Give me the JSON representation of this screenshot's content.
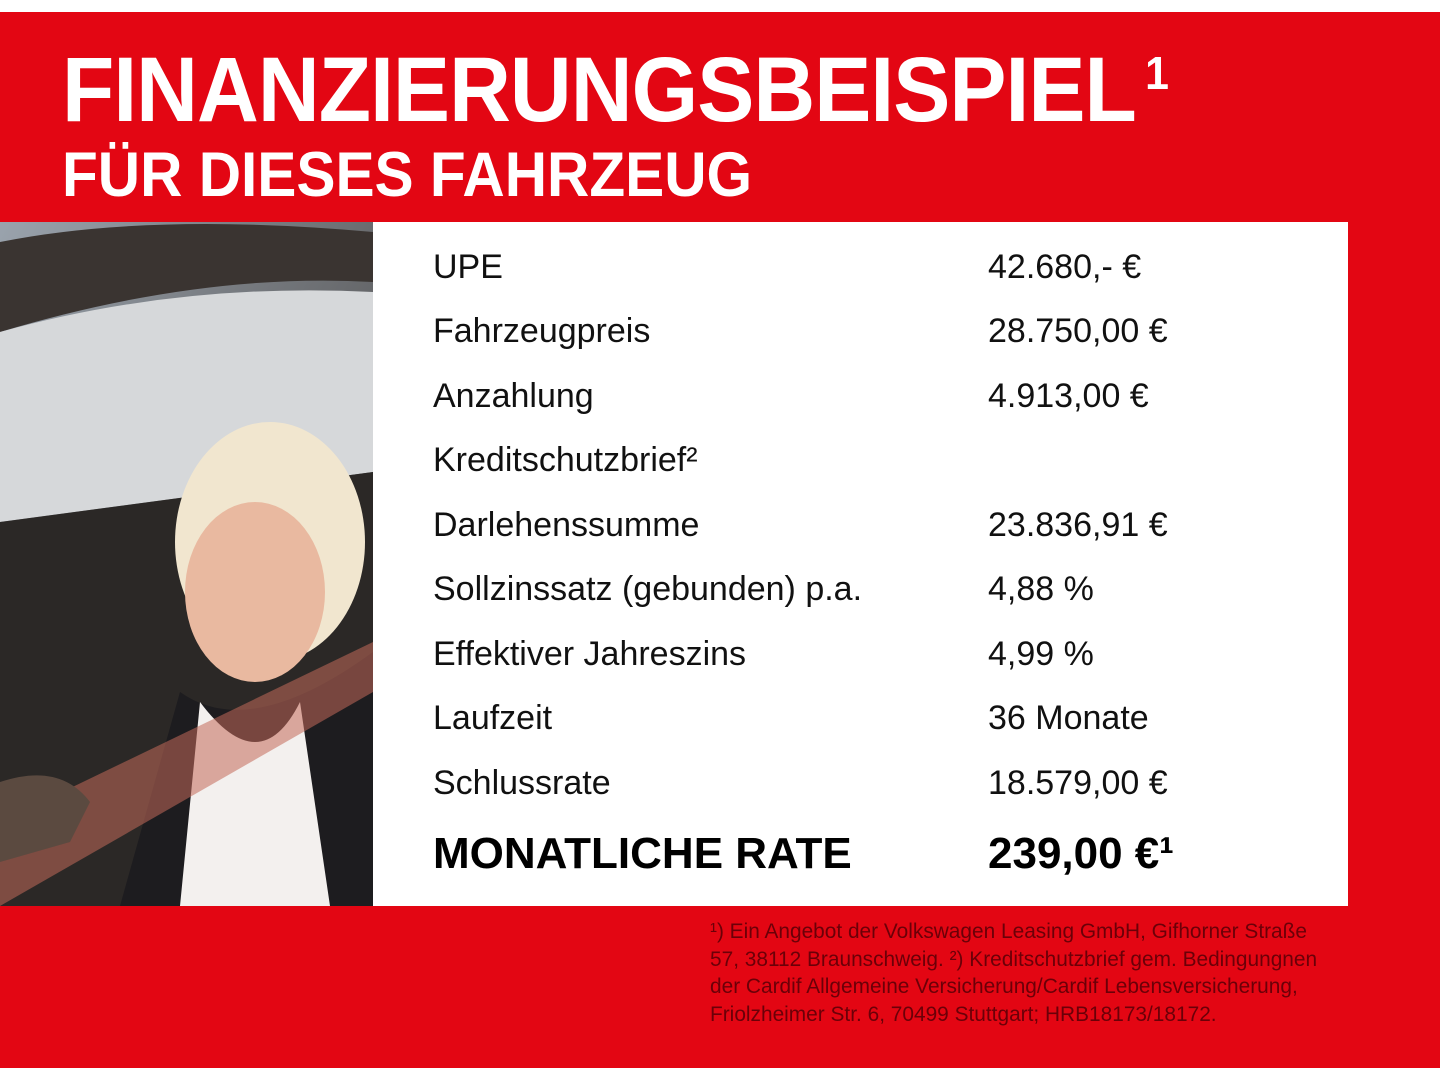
{
  "header": {
    "title": "FINANZIERUNGSBEISPIEL",
    "title_footnote": "1",
    "subtitle": "FÜR DIESES FAHRZEUG"
  },
  "photo": {
    "icon": "woman-in-car-photo"
  },
  "rows": [
    {
      "label": "UPE",
      "value": "42.680,- €"
    },
    {
      "label": "Fahrzeugpreis",
      "value": "28.750,00 €"
    },
    {
      "label": "Anzahlung",
      "value": "4.913,00 €"
    },
    {
      "label": "Kreditschutzbrief²",
      "value": ""
    },
    {
      "label": "Darlehenssumme",
      "value": "23.836,91 €"
    },
    {
      "label": "Sollzinssatz (gebunden) p.a.",
      "value": "4,88 %"
    },
    {
      "label": "Effektiver Jahreszins",
      "value": "4,99 %"
    },
    {
      "label": "Laufzeit",
      "value": "36 Monate"
    },
    {
      "label": "Schlussrate",
      "value": "18.579,00 €"
    }
  ],
  "total": {
    "label": "MONATLICHE RATE",
    "value": "239,00 €¹"
  },
  "footnote": "¹) Ein Angebot der Volkswagen Leasing GmbH, Gifhorner Straße 57, 38112 Braunschweig. ²) Kreditschutzbrief gem. Bedingungnen der Cardif Allgemeine Versicherung/Cardif Lebensversicherung, Friolzheimer Str. 6, 70499 Stuttgart; HRB18173/18172.",
  "colors": {
    "brand_red": "#e30613",
    "text": "#111111",
    "footnote": "#6b0008"
  }
}
